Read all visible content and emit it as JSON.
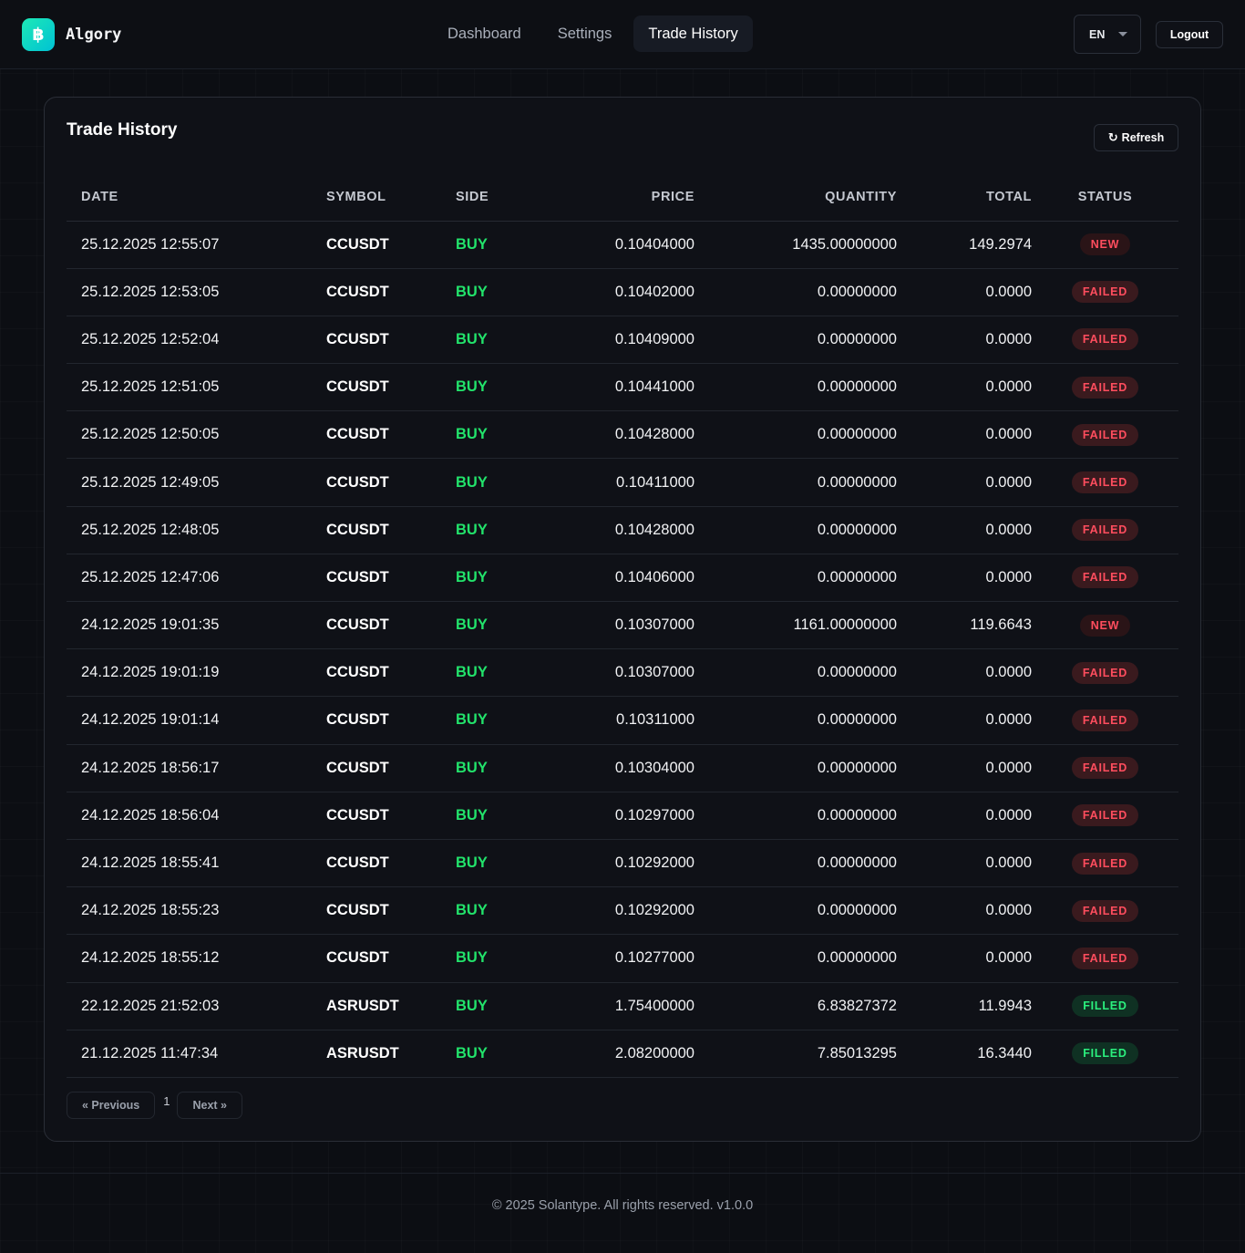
{
  "header": {
    "logo_symbol": "฿",
    "brand": "Algory",
    "nav": [
      {
        "label": "Dashboard",
        "active": false
      },
      {
        "label": "Settings",
        "active": false
      },
      {
        "label": "Trade History",
        "active": true
      }
    ],
    "language": "EN",
    "logout_label": "Logout"
  },
  "main": {
    "title": "Trade History",
    "refresh_icon": "↻",
    "refresh_label": "Refresh",
    "columns": [
      "DATE",
      "SYMBOL",
      "SIDE",
      "PRICE",
      "QUANTITY",
      "TOTAL",
      "STATUS"
    ],
    "rows": [
      {
        "date": "25.12.2025 12:55:07",
        "symbol": "CCUSDT",
        "side": "BUY",
        "price": "0.10404000",
        "quantity": "1435.00000000",
        "total": "149.2974",
        "status": "NEW"
      },
      {
        "date": "25.12.2025 12:53:05",
        "symbol": "CCUSDT",
        "side": "BUY",
        "price": "0.10402000",
        "quantity": "0.00000000",
        "total": "0.0000",
        "status": "FAILED"
      },
      {
        "date": "25.12.2025 12:52:04",
        "symbol": "CCUSDT",
        "side": "BUY",
        "price": "0.10409000",
        "quantity": "0.00000000",
        "total": "0.0000",
        "status": "FAILED"
      },
      {
        "date": "25.12.2025 12:51:05",
        "symbol": "CCUSDT",
        "side": "BUY",
        "price": "0.10441000",
        "quantity": "0.00000000",
        "total": "0.0000",
        "status": "FAILED"
      },
      {
        "date": "25.12.2025 12:50:05",
        "symbol": "CCUSDT",
        "side": "BUY",
        "price": "0.10428000",
        "quantity": "0.00000000",
        "total": "0.0000",
        "status": "FAILED"
      },
      {
        "date": "25.12.2025 12:49:05",
        "symbol": "CCUSDT",
        "side": "BUY",
        "price": "0.10411000",
        "quantity": "0.00000000",
        "total": "0.0000",
        "status": "FAILED"
      },
      {
        "date": "25.12.2025 12:48:05",
        "symbol": "CCUSDT",
        "side": "BUY",
        "price": "0.10428000",
        "quantity": "0.00000000",
        "total": "0.0000",
        "status": "FAILED"
      },
      {
        "date": "25.12.2025 12:47:06",
        "symbol": "CCUSDT",
        "side": "BUY",
        "price": "0.10406000",
        "quantity": "0.00000000",
        "total": "0.0000",
        "status": "FAILED"
      },
      {
        "date": "24.12.2025 19:01:35",
        "symbol": "CCUSDT",
        "side": "BUY",
        "price": "0.10307000",
        "quantity": "1161.00000000",
        "total": "119.6643",
        "status": "NEW"
      },
      {
        "date": "24.12.2025 19:01:19",
        "symbol": "CCUSDT",
        "side": "BUY",
        "price": "0.10307000",
        "quantity": "0.00000000",
        "total": "0.0000",
        "status": "FAILED"
      },
      {
        "date": "24.12.2025 19:01:14",
        "symbol": "CCUSDT",
        "side": "BUY",
        "price": "0.10311000",
        "quantity": "0.00000000",
        "total": "0.0000",
        "status": "FAILED"
      },
      {
        "date": "24.12.2025 18:56:17",
        "symbol": "CCUSDT",
        "side": "BUY",
        "price": "0.10304000",
        "quantity": "0.00000000",
        "total": "0.0000",
        "status": "FAILED"
      },
      {
        "date": "24.12.2025 18:56:04",
        "symbol": "CCUSDT",
        "side": "BUY",
        "price": "0.10297000",
        "quantity": "0.00000000",
        "total": "0.0000",
        "status": "FAILED"
      },
      {
        "date": "24.12.2025 18:55:41",
        "symbol": "CCUSDT",
        "side": "BUY",
        "price": "0.10292000",
        "quantity": "0.00000000",
        "total": "0.0000",
        "status": "FAILED"
      },
      {
        "date": "24.12.2025 18:55:23",
        "symbol": "CCUSDT",
        "side": "BUY",
        "price": "0.10292000",
        "quantity": "0.00000000",
        "total": "0.0000",
        "status": "FAILED"
      },
      {
        "date": "24.12.2025 18:55:12",
        "symbol": "CCUSDT",
        "side": "BUY",
        "price": "0.10277000",
        "quantity": "0.00000000",
        "total": "0.0000",
        "status": "FAILED"
      },
      {
        "date": "22.12.2025 21:52:03",
        "symbol": "ASRUSDT",
        "side": "BUY",
        "price": "1.75400000",
        "quantity": "6.83827372",
        "total": "11.9943",
        "status": "FILLED"
      },
      {
        "date": "21.12.2025 11:47:34",
        "symbol": "ASRUSDT",
        "side": "BUY",
        "price": "2.08200000",
        "quantity": "7.85013295",
        "total": "16.3440",
        "status": "FILLED"
      }
    ],
    "pagination": {
      "previous_label": "« Previous",
      "current_page": "1",
      "next_label": "Next »"
    }
  },
  "footer": {
    "text": "© 2025 Solantype. All rights reserved. v1.0.0"
  },
  "colors": {
    "accent": "#1de9b6",
    "buy": "#22e36b",
    "failed": "#ff4d5e",
    "filled": "#2bf07e",
    "background": "#0c0e13"
  }
}
